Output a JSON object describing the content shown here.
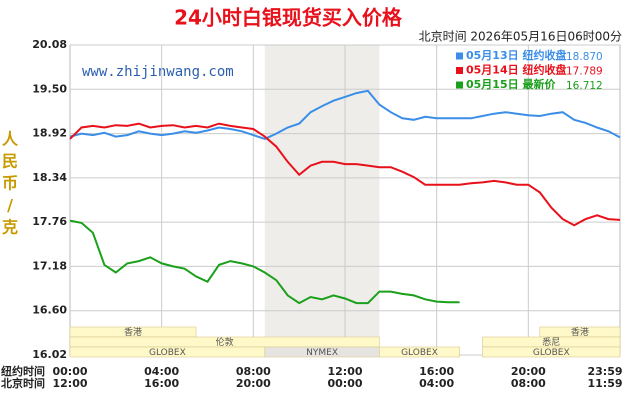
{
  "chart_data": {
    "type": "line",
    "title": "24小时白银现货买入价格",
    "timestamp": "北京时间  2026年05月16日06时00分",
    "watermark": "www.zhijinwang.com",
    "ylabel": [
      "人",
      "民",
      "币",
      "/",
      "克"
    ],
    "x": [
      0,
      0.5,
      1,
      1.5,
      2,
      2.5,
      3,
      3.5,
      4,
      4.5,
      5,
      5.5,
      6,
      6.5,
      7,
      7.5,
      8,
      8.5,
      9,
      9.5,
      10,
      10.5,
      11,
      11.5,
      12,
      12.5,
      13,
      13.5,
      14,
      14.5,
      15,
      15.5,
      16,
      16.5,
      17,
      17.5,
      18,
      18.5,
      19,
      19.5,
      20,
      20.5,
      21,
      21.5,
      22,
      22.5,
      23,
      23.5,
      24
    ],
    "xlim": [
      0,
      24
    ],
    "xticks_rows": [
      {
        "name": "纽约时间",
        "ticks": [
          {
            "value": 0,
            "label": "00:00"
          },
          {
            "value": 4,
            "label": "04:00"
          },
          {
            "value": 8,
            "label": "08:00"
          },
          {
            "value": 12,
            "label": "12:00"
          },
          {
            "value": 16,
            "label": "16:00"
          },
          {
            "value": 20,
            "label": "20:00"
          },
          {
            "value": 24,
            "label": "23:59"
          }
        ]
      },
      {
        "name": "北京时间",
        "ticks": [
          {
            "value": 0,
            "label": "12:00"
          },
          {
            "value": 4,
            "label": "16:00"
          },
          {
            "value": 8,
            "label": "20:00"
          },
          {
            "value": 12,
            "label": "00:00"
          },
          {
            "value": 16,
            "label": "04:00"
          },
          {
            "value": 20,
            "label": "08:00"
          },
          {
            "value": 24,
            "label": "11:59"
          }
        ]
      }
    ],
    "ylim": [
      16.02,
      20.08
    ],
    "yticks": [
      16.02,
      {
        "value": 16.6,
        "label": "16.60"
      },
      17.18,
      17.76,
      18.34,
      18.92,
      {
        "value": 19.5,
        "label": "19.50"
      },
      20.08
    ],
    "grid": true,
    "series": [
      {
        "name": "05月13日 纽约收盘",
        "legend_value": "18.870",
        "color": "#3b8ee8",
        "values": [
          18.88,
          18.92,
          18.9,
          18.93,
          18.88,
          18.9,
          18.95,
          18.92,
          18.9,
          18.92,
          18.95,
          18.93,
          18.96,
          19.0,
          18.98,
          18.95,
          18.9,
          18.85,
          18.92,
          19.0,
          19.05,
          19.2,
          19.28,
          19.35,
          19.4,
          19.45,
          19.48,
          19.3,
          19.2,
          19.12,
          19.1,
          19.14,
          19.12,
          19.12,
          19.12,
          19.12,
          19.15,
          19.18,
          19.2,
          19.18,
          19.16,
          19.15,
          19.18,
          19.2,
          19.1,
          19.06,
          19.0,
          18.95,
          18.87
        ]
      },
      {
        "name": "05月14日 纽约收盘",
        "legend_value": "17.789",
        "color": "#e8101a",
        "values": [
          18.85,
          19.0,
          19.02,
          19.0,
          19.03,
          19.02,
          19.05,
          19.0,
          19.02,
          19.03,
          19.0,
          19.02,
          19.0,
          19.05,
          19.02,
          19.0,
          18.98,
          18.88,
          18.75,
          18.55,
          18.38,
          18.5,
          18.55,
          18.55,
          18.52,
          18.52,
          18.5,
          18.48,
          18.48,
          18.42,
          18.35,
          18.25,
          18.25,
          18.25,
          18.25,
          18.27,
          18.28,
          18.3,
          18.28,
          18.25,
          18.25,
          18.15,
          17.95,
          17.8,
          17.72,
          17.8,
          17.85,
          17.8,
          17.789
        ]
      },
      {
        "name": "05月15日 最新价",
        "legend_value": "16.712",
        "color": "#1aa01a",
        "values": [
          17.78,
          17.75,
          17.62,
          17.2,
          17.1,
          17.22,
          17.25,
          17.3,
          17.22,
          17.18,
          17.15,
          17.05,
          16.98,
          17.2,
          17.25,
          17.22,
          17.18,
          17.1,
          17.0,
          16.8,
          16.7,
          16.78,
          16.75,
          16.8,
          16.76,
          16.7,
          16.7,
          16.85,
          16.85,
          16.82,
          16.8,
          16.75,
          16.72,
          16.71,
          16.712,
          null,
          null,
          null,
          null,
          null,
          null,
          null,
          null,
          null,
          null,
          null,
          null,
          null,
          null
        ]
      }
    ],
    "sessions": [
      {
        "label": "香港",
        "row": 0,
        "start": 0,
        "end": 5.5
      },
      {
        "label": "香港",
        "row": 0,
        "start": 20.5,
        "end": 24
      },
      {
        "label": "伦敦",
        "row": 1,
        "start": 0,
        "end": 13.5
      },
      {
        "label": "悉尼",
        "row": 1,
        "start": 18,
        "end": 24
      },
      {
        "label": "GLOBEX",
        "row": 2,
        "start": 0,
        "end": 8.5
      },
      {
        "label": "NYMEX",
        "row": 2,
        "start": 8.5,
        "end": 13.5,
        "shaded": true
      },
      {
        "label": "GLOBEX",
        "row": 2,
        "start": 13.5,
        "end": 17
      },
      {
        "label": "GLOBEX",
        "row": 2,
        "start": 18,
        "end": 24
      }
    ]
  }
}
